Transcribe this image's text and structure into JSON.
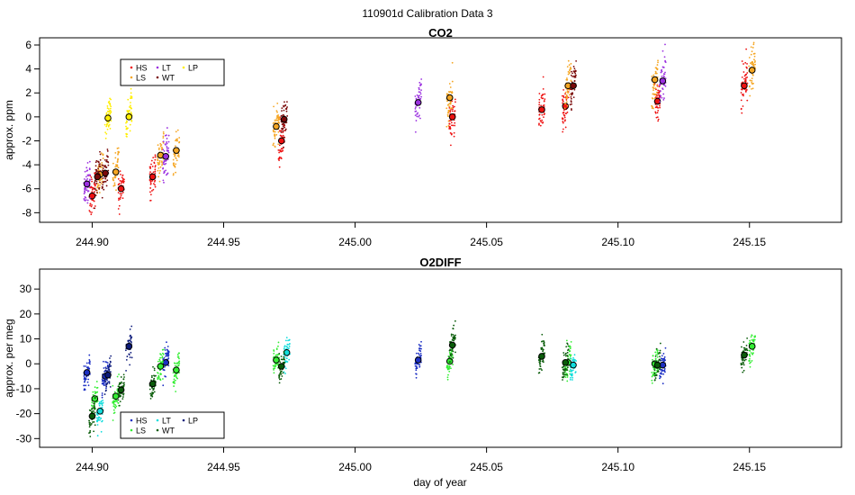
{
  "figure": {
    "title": "110901d   Calibration Data 3",
    "xlabel": "day of year"
  },
  "legend_labels": [
    "HS",
    "LS",
    "LT",
    "WT",
    "LP"
  ],
  "chart_data": [
    {
      "type": "scatter",
      "title": "CO2",
      "ylabel": "approx. ppm",
      "xlabel": "day of year",
      "xlim": [
        244.88,
        245.185
      ],
      "ylim": [
        -8.8,
        6.6
      ],
      "xticks": [
        "244.90",
        "244.95",
        "245.00",
        "245.05",
        "245.10",
        "245.15"
      ],
      "yticks": [
        "-8",
        "-6",
        "-4",
        "-2",
        "0",
        "2",
        "4",
        "6"
      ],
      "legend_position": "top-left",
      "series": [
        {
          "name": "HS",
          "color": "#ee1111",
          "x": [
            244.9,
            244.911,
            244.923,
            244.972,
            245.037,
            245.071,
            245.08,
            245.115,
            245.148
          ],
          "y": [
            -6.6,
            -6.0,
            -5.0,
            -2.0,
            0.0,
            0.6,
            0.9,
            1.3,
            2.6
          ]
        },
        {
          "name": "LS",
          "color": "#f5a623",
          "x": [
            244.903,
            244.909,
            244.926,
            244.932,
            244.97,
            245.036,
            245.081,
            245.114,
            245.151
          ],
          "y": [
            -4.8,
            -4.6,
            -3.2,
            -2.8,
            -0.8,
            1.6,
            2.6,
            3.1,
            3.9
          ]
        },
        {
          "name": "LT",
          "color": "#9b30e0",
          "x": [
            244.898,
            244.928,
            245.024,
            245.117
          ],
          "y": [
            -5.6,
            -3.3,
            1.2,
            3.0
          ]
        },
        {
          "name": "WT",
          "color": "#7a0a0a",
          "x": [
            244.902,
            244.905,
            244.973,
            245.083
          ],
          "y": [
            -5.0,
            -4.7,
            -0.2,
            2.6
          ]
        },
        {
          "name": "LP",
          "color": "#ffee00",
          "x": [
            244.906,
            244.914
          ],
          "y": [
            -0.1,
            0.0
          ]
        }
      ]
    },
    {
      "type": "scatter",
      "title": "O2DIFF",
      "ylabel": "approx. per meg",
      "xlabel": "day of year",
      "xlim": [
        244.88,
        245.185
      ],
      "ylim": [
        -33.5,
        38
      ],
      "xticks": [
        "244.90",
        "244.95",
        "245.00",
        "245.05",
        "245.10",
        "245.15"
      ],
      "yticks": [
        "-30",
        "-20",
        "-10",
        "0",
        "10",
        "20",
        "30"
      ],
      "legend_position": "bottom-left",
      "series": [
        {
          "name": "HS",
          "color": "#1c2fc4",
          "x": [
            244.898,
            244.905,
            244.928,
            245.024,
            245.117
          ],
          "y": [
            -3.5,
            -5.0,
            0.5,
            1.5,
            -0.5
          ]
        },
        {
          "name": "LS",
          "color": "#33ee33",
          "x": [
            244.901,
            244.909,
            244.926,
            244.932,
            244.97,
            245.036,
            245.081,
            245.114,
            245.151
          ],
          "y": [
            -14.0,
            -13.0,
            -1.0,
            -2.5,
            1.5,
            1.0,
            0.5,
            0.0,
            7.0
          ]
        },
        {
          "name": "LT",
          "color": "#11dddd",
          "x": [
            244.903,
            244.974,
            245.083
          ],
          "y": [
            -19.0,
            4.5,
            -0.5
          ]
        },
        {
          "name": "WT",
          "color": "#0a5c0a",
          "x": [
            244.9,
            244.911,
            244.923,
            244.972,
            245.037,
            245.071,
            245.08,
            245.115,
            245.148
          ],
          "y": [
            -21.0,
            -10.5,
            -8.0,
            -1.0,
            7.5,
            3.0,
            0.5,
            -0.5,
            3.5
          ]
        },
        {
          "name": "LP",
          "color": "#0c1a7a",
          "x": [
            244.906,
            244.914
          ],
          "y": [
            -4.5,
            7.0
          ]
        }
      ]
    }
  ]
}
